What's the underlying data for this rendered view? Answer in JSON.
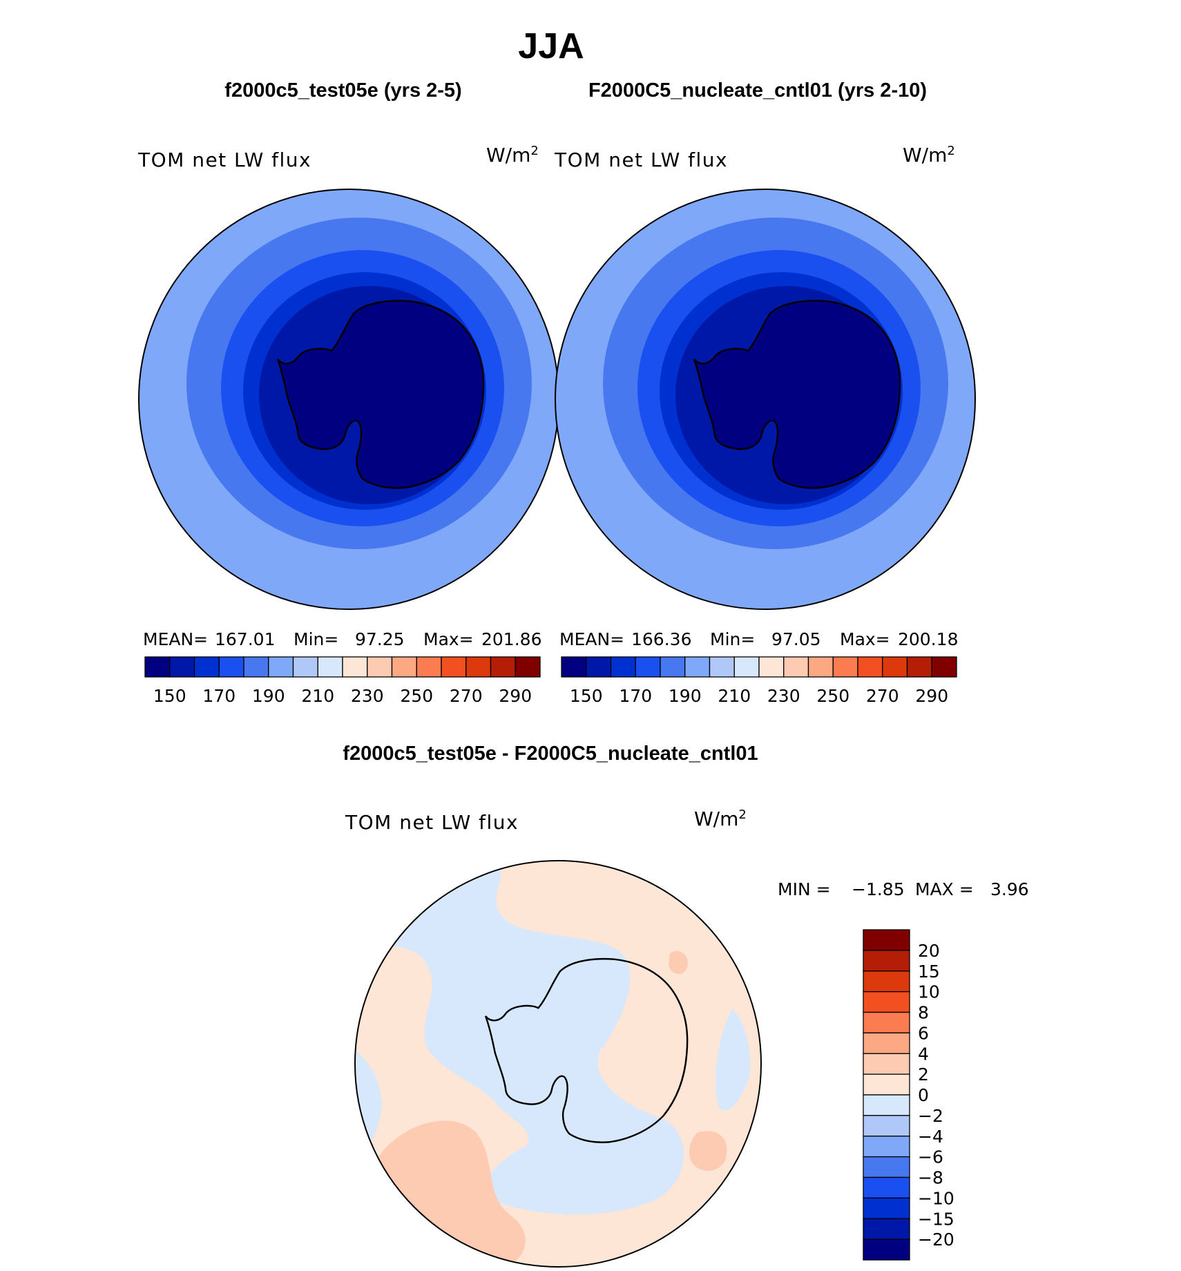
{
  "figure": {
    "season_title": "JJA",
    "units_main": "W/m",
    "units_sup": "2",
    "field_label": "TOM net LW flux"
  },
  "panels": [
    {
      "title": "f2000c5_test05e (yrs 2-5)",
      "stats": {
        "mean_label": "MEAN=",
        "mean": "167.01",
        "min_label": "Min=",
        "min": "97.25",
        "max_label": "Max=",
        "max": "201.86"
      }
    },
    {
      "title": "F2000C5_nucleate_cntl01 (yrs 2-10)",
      "stats": {
        "mean_label": "MEAN=",
        "mean": "166.36",
        "min_label": "Min=",
        "min": "97.05",
        "max_label": "Max=",
        "max": "200.18"
      }
    }
  ],
  "diff_panel": {
    "title": "f2000c5_test05e - F2000C5_nucleate_cntl01",
    "stats": {
      "min_label": "MIN =",
      "min": "−1.85",
      "max_label": "MAX =",
      "max": "3.96"
    }
  },
  "colors": {
    "field_scale": [
      "#000080",
      "#0018a8",
      "#0030d0",
      "#1a50f0",
      "#4878f0",
      "#80a8f8",
      "#b0c8f8",
      "#d8e8fc",
      "#fde6d6",
      "#fdcbb2",
      "#fca882",
      "#fb7c50",
      "#f35022",
      "#dc3a0c",
      "#b41e06",
      "#800000"
    ],
    "diff_scale": [
      "#000080",
      "#0018a8",
      "#0030d0",
      "#1a50f0",
      "#4878f0",
      "#80a8f8",
      "#b0c8f8",
      "#d8e8fc",
      "#fde6d6",
      "#fdcbb2",
      "#fca882",
      "#fb7c50",
      "#f35022",
      "#dc3a0c",
      "#b41e06",
      "#800000"
    ],
    "map_outline": "#000000",
    "coast": "#000000"
  },
  "chart_data": [
    {
      "type": "heatmap",
      "projection": "south-polar-stereographic",
      "title": "f2000c5_test05e (yrs 2-5)",
      "field": "TOM net LW flux",
      "units": "W/m^2",
      "mean": 167.01,
      "min": 97.25,
      "max": 201.86,
      "colorbar_levels": [
        140,
        150,
        160,
        170,
        180,
        190,
        200,
        210,
        220,
        230,
        240,
        250,
        260,
        270,
        280,
        290,
        300
      ],
      "colorbar_tick_labels": [
        "150",
        "170",
        "190",
        "210",
        "230",
        "250",
        "270",
        "290"
      ],
      "colorbar_orientation": "horizontal",
      "contour_bands": [
        {
          "level": 200,
          "description": "outer ocean ring"
        },
        {
          "level": 190,
          "description": "mid ocean ring"
        },
        {
          "level": 180,
          "description": "inner ocean ring"
        },
        {
          "level": 170,
          "description": "near-coast ring"
        },
        {
          "level": 160,
          "description": "coastal band"
        },
        {
          "level": 140,
          "description": "Antarctic continent interior"
        }
      ]
    },
    {
      "type": "heatmap",
      "projection": "south-polar-stereographic",
      "title": "F2000C5_nucleate_cntl01 (yrs 2-10)",
      "field": "TOM net LW flux",
      "units": "W/m^2",
      "mean": 166.36,
      "min": 97.05,
      "max": 200.18,
      "colorbar_levels": [
        140,
        150,
        160,
        170,
        180,
        190,
        200,
        210,
        220,
        230,
        240,
        250,
        260,
        270,
        280,
        290,
        300
      ],
      "colorbar_tick_labels": [
        "150",
        "170",
        "190",
        "210",
        "230",
        "250",
        "270",
        "290"
      ],
      "colorbar_orientation": "horizontal",
      "contour_bands": [
        {
          "level": 200,
          "description": "outer ocean ring"
        },
        {
          "level": 190,
          "description": "mid ocean ring"
        },
        {
          "level": 180,
          "description": "inner ocean ring"
        },
        {
          "level": 170,
          "description": "near-coast ring"
        },
        {
          "level": 160,
          "description": "coastal band"
        },
        {
          "level": 140,
          "description": "Antarctic continent interior"
        }
      ]
    },
    {
      "type": "heatmap",
      "projection": "south-polar-stereographic",
      "title": "f2000c5_test05e - F2000C5_nucleate_cntl01",
      "field": "TOM net LW flux",
      "units": "W/m^2",
      "min": -1.85,
      "max": 3.96,
      "colorbar_tick_labels": [
        "−20",
        "−15",
        "−10",
        "−8",
        "−6",
        "−4",
        "−2",
        "0",
        "2",
        "4",
        "6",
        "8",
        "10",
        "15",
        "20"
      ],
      "colorbar_orientation": "vertical",
      "contour_bands": [
        {
          "range": [
            0,
            2
          ],
          "description": "background, most of ocean"
        },
        {
          "range": [
            -2,
            0
          ],
          "description": "patches over continent and Weddell/ocean sectors"
        },
        {
          "range": [
            2,
            4
          ],
          "description": "scattered patches, largest in lower-left sector"
        }
      ]
    }
  ]
}
